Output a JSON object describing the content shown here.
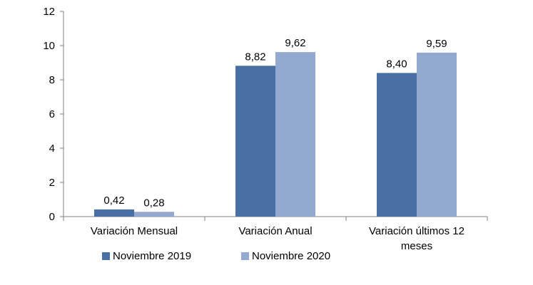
{
  "chart_data": {
    "type": "bar",
    "title": "",
    "xlabel": "",
    "ylabel": "",
    "categories": [
      "Variación Mensual",
      "Variación  Anual",
      "Variación últimos 12 meses"
    ],
    "series": [
      {
        "name": "Noviembre 2019",
        "values": [
          0.42,
          8.82,
          8.4
        ],
        "labels": [
          "0,42",
          "8,82",
          "8,40"
        ],
        "color": "#4a6fa5"
      },
      {
        "name": "Noviembre 2020",
        "values": [
          0.28,
          9.62,
          9.59
        ],
        "labels": [
          "0,28",
          "9,62",
          "9,59"
        ],
        "color": "#94a9d0"
      }
    ],
    "ylim": [
      0,
      12
    ],
    "yticks": [
      0,
      2,
      4,
      6,
      8,
      10,
      12
    ],
    "grid": false,
    "legend_position": "bottom-left"
  }
}
